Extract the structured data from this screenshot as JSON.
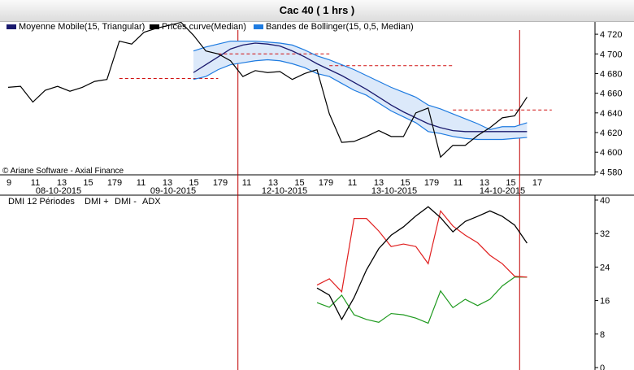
{
  "window": {
    "title": "Cac 40   ( 1 hrs )"
  },
  "top_legend": [
    {
      "label": "Moyenne Mobile(15, Triangular)",
      "color": "#1a1a6e"
    },
    {
      "label": "Prices curve(Median)",
      "color": "#000000"
    },
    {
      "label": "Bandes de Bollinger(15, 0,5, Median)",
      "color": "#1e7be0"
    }
  ],
  "watermark": "© Ariane Software - Axial Finance",
  "bottom_legend": {
    "title": "DMI 12 Périodes",
    "items": [
      {
        "label": "DMI +",
        "color": "#1f9a1f"
      },
      {
        "label": "DMI -",
        "color": "#e02020"
      },
      {
        "label": "ADX",
        "color": "#000000"
      }
    ]
  },
  "x_axis": {
    "hour_ticks": [
      "9",
      "11",
      "13",
      "15",
      "179",
      "11",
      "13",
      "15",
      "179",
      "11",
      "13",
      "15",
      "179",
      "11",
      "13",
      "15",
      "179",
      "11",
      "13",
      "15",
      "17"
    ],
    "dates": [
      "08-10-2015",
      "09-10-2015",
      "12-10-2015",
      "13-10-2015",
      "14-10-2015"
    ]
  },
  "colors": {
    "band_fill": "#dce9fa",
    "ref_line": "#c00000",
    "dashed": "#d01010"
  },
  "chart_data": [
    {
      "type": "line",
      "title": "",
      "x": [
        0,
        1,
        2,
        3,
        4,
        5,
        6,
        7,
        8,
        9,
        10,
        11,
        12,
        13,
        14,
        15,
        16,
        17,
        18,
        19,
        20,
        21,
        22,
        23,
        24,
        25,
        26,
        27,
        28,
        29,
        30,
        31,
        32,
        33,
        34,
        35,
        36,
        37,
        38,
        39,
        40,
        41,
        42,
        43,
        44
      ],
      "ylim": [
        4577,
        4730
      ],
      "y_ticks": [
        "4 580",
        "4 600",
        "4 620",
        "4 640",
        "4 660",
        "4 680",
        "4 700",
        "4 720"
      ],
      "y_tick_values": [
        4580,
        4600,
        4620,
        4640,
        4660,
        4680,
        4700,
        4720
      ],
      "series": [
        {
          "name": "Prices curve(Median)",
          "color": "#000000",
          "values": [
            4666,
            4667,
            4651,
            4663,
            4667,
            4662,
            4666,
            4672,
            4674,
            4713,
            4710,
            4722,
            4726,
            4729,
            4732,
            4719,
            4703,
            4700,
            4693,
            4677,
            4683,
            4681,
            4682,
            4674,
            4680,
            4684,
            4639,
            4610,
            4611,
            4616,
            4622,
            4616,
            4616,
            4640,
            4645,
            4595,
            4607,
            4607,
            4617,
            4625,
            4635,
            4637,
            4656,
            null,
            null
          ]
        },
        {
          "name": "Moyenne Mobile(15, Triangular)",
          "color": "#1a1a6e",
          "values": [
            null,
            null,
            null,
            null,
            null,
            null,
            null,
            null,
            null,
            null,
            null,
            null,
            null,
            null,
            null,
            4681,
            4689,
            4697,
            4705,
            4709,
            4711,
            4710,
            4708,
            4703,
            4697,
            4690,
            4684,
            4678,
            4671,
            4664,
            4656,
            4648,
            4641,
            4635,
            4629,
            4625,
            4622,
            4621,
            4621,
            4621,
            4621,
            4621,
            4621,
            null,
            null
          ]
        },
        {
          "name": "Bandes de Bollinger(15, 0,5, Median) upper",
          "color": "#1e7be0",
          "values": [
            null,
            null,
            null,
            null,
            null,
            null,
            null,
            null,
            null,
            null,
            null,
            null,
            null,
            null,
            null,
            4703,
            4707,
            4710,
            4713,
            4713,
            4713,
            4712,
            4711,
            4709,
            4704,
            4698,
            4694,
            4689,
            4684,
            4678,
            4672,
            4666,
            4661,
            4656,
            4648,
            4644,
            4639,
            4634,
            4629,
            4623,
            4626,
            4626,
            4630,
            null,
            null
          ]
        },
        {
          "name": "Bandes de Bollinger(15, 0,5, Median) lower",
          "color": "#1e7be0",
          "values": [
            null,
            null,
            null,
            null,
            null,
            null,
            null,
            null,
            null,
            null,
            null,
            null,
            null,
            null,
            null,
            4674,
            4677,
            4684,
            4689,
            4691,
            4693,
            4694,
            4693,
            4690,
            4686,
            4680,
            4677,
            4670,
            4663,
            4658,
            4650,
            4642,
            4636,
            4630,
            4621,
            4619,
            4616,
            4614,
            4613,
            4613,
            4613,
            4614,
            4615,
            null,
            null
          ]
        }
      ],
      "reference_levels": [
        {
          "from": 9,
          "to": 17,
          "value": 4675
        },
        {
          "from": 17,
          "to": 26,
          "value": 4700
        },
        {
          "from": 26,
          "to": 36,
          "value": 4688
        },
        {
          "from": 36,
          "to": 44,
          "value": 4643
        }
      ]
    },
    {
      "type": "line",
      "title": "DMI 12 Périodes",
      "ylim": [
        0,
        40
      ],
      "y_ticks": [
        "0",
        "8",
        "16",
        "24",
        "32",
        "40"
      ],
      "y_tick_values": [
        0,
        8,
        16,
        24,
        32,
        40
      ],
      "series": [
        {
          "name": "DMI +",
          "color": "#1f9a1f",
          "values": [
            null,
            null,
            null,
            null,
            null,
            null,
            null,
            null,
            null,
            null,
            null,
            null,
            null,
            null,
            null,
            null,
            null,
            null,
            null,
            null,
            null,
            null,
            null,
            null,
            null,
            15.5,
            14.4,
            17.3,
            12.6,
            11.5,
            10.8,
            12.9,
            12.6,
            11.8,
            10.6,
            18.3,
            14.3,
            16.3,
            14.8,
            16.3,
            19.5,
            21.6,
            21.6,
            null,
            null
          ]
        },
        {
          "name": "DMI -",
          "color": "#e02020",
          "values": [
            null,
            null,
            null,
            null,
            null,
            null,
            null,
            null,
            null,
            null,
            null,
            null,
            null,
            null,
            null,
            null,
            null,
            null,
            null,
            null,
            null,
            null,
            null,
            null,
            null,
            19.7,
            21.2,
            18.1,
            35.6,
            35.6,
            32.6,
            28.9,
            29.5,
            28.9,
            24.8,
            37.4,
            33.8,
            31.6,
            29.8,
            26.8,
            24.8,
            21.8,
            21.6,
            null,
            null
          ]
        },
        {
          "name": "ADX",
          "color": "#000000",
          "values": [
            null,
            null,
            null,
            null,
            null,
            null,
            null,
            null,
            null,
            null,
            null,
            null,
            null,
            null,
            null,
            null,
            null,
            null,
            null,
            null,
            null,
            null,
            null,
            null,
            null,
            19.0,
            17.3,
            11.5,
            16.7,
            23.3,
            28.4,
            31.6,
            33.6,
            36.2,
            38.4,
            35.8,
            32.4,
            34.9,
            36.1,
            37.4,
            36.1,
            34.0,
            29.7,
            null,
            null
          ]
        }
      ]
    }
  ]
}
